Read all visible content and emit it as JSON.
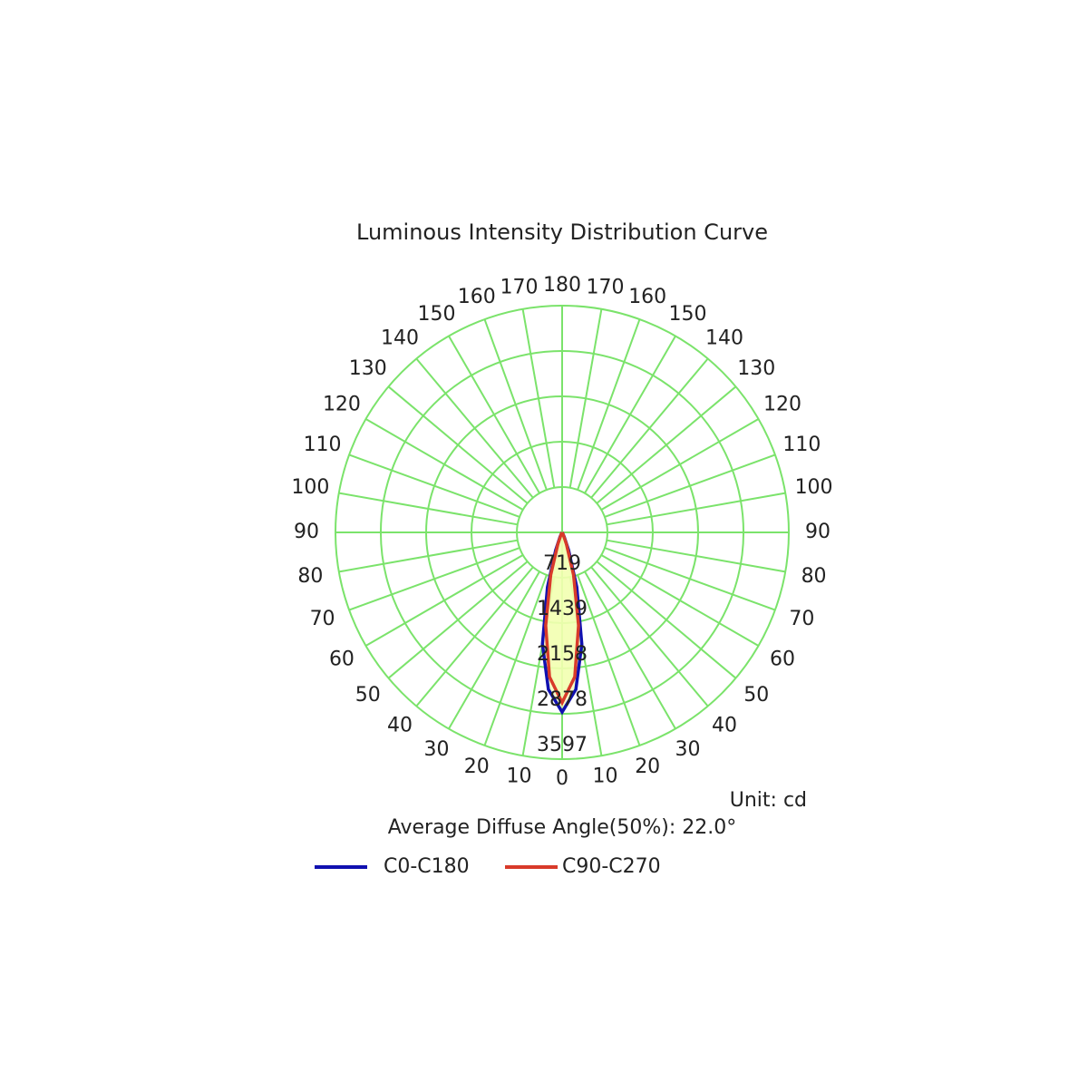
{
  "chart_data": {
    "type": "polar",
    "title": "Luminous Intensity Distribution Curve",
    "unit_label": "Unit: cd",
    "annotation": "Average Diffuse Angle(50%): 22.0°",
    "x": [
      -40,
      -30,
      -25,
      -20,
      -15,
      -10,
      -5,
      0,
      5,
      10,
      15,
      20,
      25,
      30,
      40
    ],
    "series": [
      {
        "name": "C0-C180",
        "color": "#1010b0",
        "values": [
          0,
          20,
          80,
          300,
          900,
          1800,
          2500,
          2850,
          2500,
          1800,
          900,
          300,
          80,
          20,
          0
        ]
      },
      {
        "name": "C90-C270",
        "color": "#d83a2a",
        "values": [
          0,
          10,
          50,
          200,
          700,
          1500,
          2300,
          2700,
          2300,
          1500,
          700,
          200,
          50,
          10,
          0
        ]
      }
    ],
    "rlim": [
      0,
      3597
    ],
    "rticks": [
      719,
      1439,
      2158,
      2878,
      3597
    ],
    "angle_ticks": [
      0,
      10,
      20,
      30,
      40,
      50,
      60,
      70,
      80,
      90,
      100,
      110,
      120,
      130,
      140,
      150,
      160,
      170,
      180
    ],
    "grid_color": "#7be36b",
    "fill_color": "#f2ffb0"
  }
}
